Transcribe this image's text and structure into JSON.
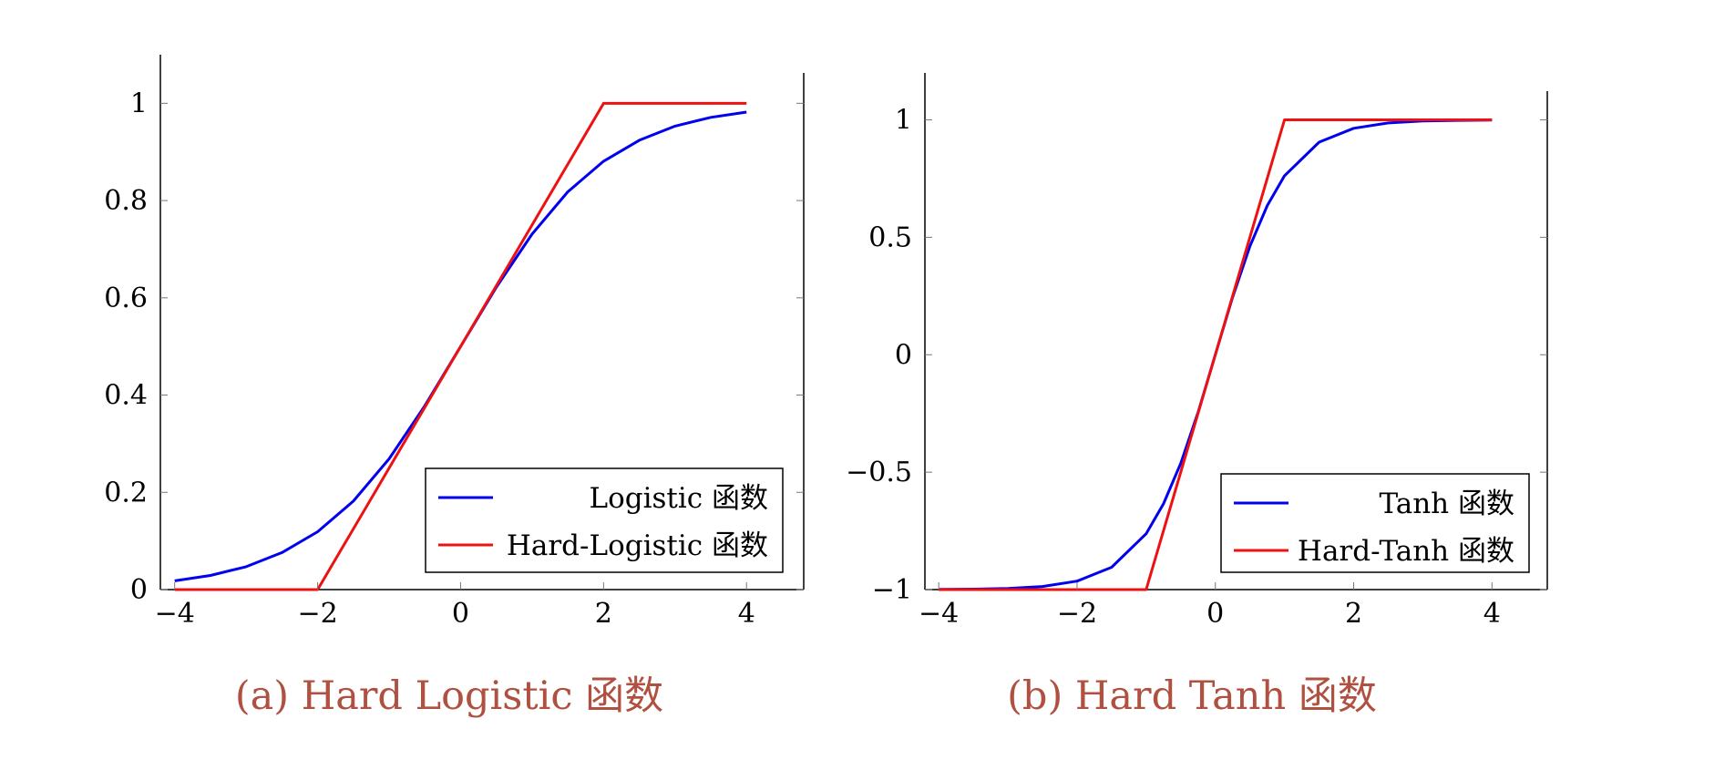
{
  "colors": {
    "blue_series": "#0000ee",
    "red_series": "#ee1111",
    "caption": "#b05040",
    "axis": "#000000"
  },
  "chart_data": [
    {
      "type": "line",
      "caption": "(a) Hard Logistic 函数",
      "xlim": [
        -4.2,
        4.8
      ],
      "ylim": [
        0,
        1.1
      ],
      "x_ticks": [
        -4,
        -2,
        0,
        2,
        4
      ],
      "y_ticks": [
        0,
        0.2,
        0.4,
        0.6,
        0.8,
        1
      ],
      "x_tick_labels": [
        "−4",
        "−2",
        "0",
        "2",
        "4"
      ],
      "y_tick_labels": [
        "0",
        "0.2",
        "0.4",
        "0.6",
        "0.8",
        "1"
      ],
      "grid": false,
      "legend_position": "bottom-right",
      "series": [
        {
          "name": "Logistic 函数",
          "color": "#0000ee",
          "x": [
            -4,
            -3.5,
            -3,
            -2.5,
            -2,
            -1.5,
            -1,
            -0.5,
            0,
            0.5,
            1,
            1.5,
            2,
            2.5,
            3,
            3.5,
            4
          ],
          "y": [
            0.018,
            0.029,
            0.047,
            0.076,
            0.119,
            0.182,
            0.269,
            0.378,
            0.5,
            0.622,
            0.731,
            0.818,
            0.881,
            0.924,
            0.953,
            0.971,
            0.982
          ]
        },
        {
          "name": "Hard-Logistic 函数",
          "color": "#ee1111",
          "x": [
            -4,
            -2,
            2,
            4
          ],
          "y": [
            0,
            0,
            1,
            1
          ]
        }
      ]
    },
    {
      "type": "line",
      "caption": "(b) Hard Tanh 函数",
      "xlim": [
        -4.2,
        4.8
      ],
      "ylim": [
        -1,
        1.2
      ],
      "x_ticks": [
        -4,
        -2,
        0,
        2,
        4
      ],
      "y_ticks": [
        -1,
        -0.5,
        0,
        0.5,
        1
      ],
      "x_tick_labels": [
        "−4",
        "−2",
        "0",
        "2",
        "4"
      ],
      "y_tick_labels": [
        "−1",
        "−0.5",
        "0",
        "0.5",
        "1"
      ],
      "grid": false,
      "legend_position": "bottom-right",
      "series": [
        {
          "name": "Tanh 函数",
          "color": "#0000ee",
          "x": [
            -4,
            -3.5,
            -3,
            -2.5,
            -2,
            -1.5,
            -1,
            -0.75,
            -0.5,
            -0.25,
            0,
            0.25,
            0.5,
            0.75,
            1,
            1.5,
            2,
            2.5,
            3,
            3.5,
            4
          ],
          "y": [
            -0.999,
            -0.998,
            -0.995,
            -0.987,
            -0.964,
            -0.905,
            -0.762,
            -0.635,
            -0.462,
            -0.245,
            0,
            0.245,
            0.462,
            0.635,
            0.762,
            0.905,
            0.964,
            0.987,
            0.995,
            0.998,
            0.999
          ]
        },
        {
          "name": "Hard-Tanh 函数",
          "color": "#ee1111",
          "x": [
            -4,
            -1,
            1,
            4
          ],
          "y": [
            -1,
            -1,
            1,
            1
          ]
        }
      ]
    }
  ]
}
